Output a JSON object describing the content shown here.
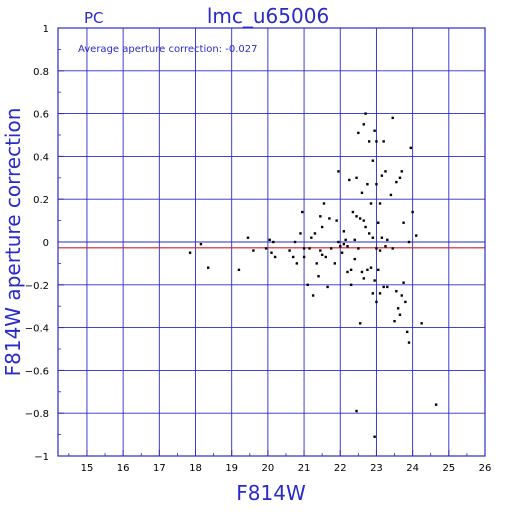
{
  "chart_data": {
    "type": "scatter",
    "corner_label": "PC",
    "title": "lmc_u65006",
    "annotation": "Average aperture correction: -0.027",
    "xlabel": "F814W",
    "ylabel": "F814W aperture correction",
    "xlim": [
      14.2,
      26
    ],
    "ylim": [
      -1,
      1
    ],
    "xticks": [
      15,
      16,
      17,
      18,
      19,
      20,
      21,
      22,
      23,
      24,
      25,
      26
    ],
    "yticks": [
      -1,
      -0.8,
      -0.6,
      -0.4,
      -0.2,
      0,
      0.2,
      0.4,
      0.6,
      0.8,
      1
    ],
    "ytick_labels": [
      "−1",
      "−0.8",
      "−0.6",
      "−0.4",
      "−0.2",
      "0",
      "0.2",
      "0.4",
      "0.6",
      "0.8",
      "1"
    ],
    "grid": true,
    "reference_lines": [
      {
        "y": 0,
        "color": "#2a2acb"
      },
      {
        "y": -0.027,
        "color": "#d42020"
      }
    ],
    "colors": {
      "axes": "#2a2acb",
      "grid": "#2a2acb",
      "average_line": "#d42020",
      "points": "#000000"
    },
    "points": [
      [
        17.85,
        -0.05
      ],
      [
        18.15,
        -0.01
      ],
      [
        18.35,
        -0.12
      ],
      [
        19.2,
        -0.13
      ],
      [
        19.45,
        0.02
      ],
      [
        19.6,
        -0.04
      ],
      [
        19.95,
        -0.03
      ],
      [
        20.05,
        0.01
      ],
      [
        20.1,
        -0.05
      ],
      [
        20.15,
        0.0
      ],
      [
        20.2,
        -0.07
      ],
      [
        20.6,
        -0.04
      ],
      [
        20.7,
        -0.07
      ],
      [
        20.75,
        0.0
      ],
      [
        20.8,
        -0.1
      ],
      [
        20.9,
        0.04
      ],
      [
        20.95,
        0.14
      ],
      [
        21.0,
        -0.03
      ],
      [
        21.0,
        -0.07
      ],
      [
        21.1,
        -0.2
      ],
      [
        21.15,
        -0.03
      ],
      [
        21.2,
        0.02
      ],
      [
        21.25,
        -0.25
      ],
      [
        21.3,
        0.04
      ],
      [
        21.35,
        -0.1
      ],
      [
        21.4,
        -0.16
      ],
      [
        21.45,
        0.12
      ],
      [
        21.45,
        -0.04
      ],
      [
        21.5,
        0.07
      ],
      [
        21.5,
        -0.06
      ],
      [
        21.55,
        0.18
      ],
      [
        21.6,
        -0.07
      ],
      [
        21.65,
        -0.21
      ],
      [
        21.7,
        0.11
      ],
      [
        21.75,
        -0.03
      ],
      [
        21.85,
        -0.1
      ],
      [
        21.9,
        0.1
      ],
      [
        21.95,
        0.33
      ],
      [
        21.95,
        0.0
      ],
      [
        22.0,
        -0.02
      ],
      [
        22.05,
        -0.05
      ],
      [
        22.1,
        0.05
      ],
      [
        22.1,
        -0.01
      ],
      [
        22.15,
        0.01
      ],
      [
        22.2,
        -0.14
      ],
      [
        22.2,
        -0.02
      ],
      [
        22.25,
        0.29
      ],
      [
        22.3,
        -0.13
      ],
      [
        22.3,
        -0.2
      ],
      [
        22.35,
        0.14
      ],
      [
        22.4,
        0.01
      ],
      [
        22.4,
        -0.08
      ],
      [
        22.45,
        0.3
      ],
      [
        22.45,
        0.12
      ],
      [
        22.5,
        0.51
      ],
      [
        22.5,
        -0.03
      ],
      [
        22.55,
        0.11
      ],
      [
        22.55,
        -0.38
      ],
      [
        22.6,
        0.23
      ],
      [
        22.6,
        -0.14
      ],
      [
        22.65,
        0.55
      ],
      [
        22.65,
        0.1
      ],
      [
        22.65,
        -0.17
      ],
      [
        22.7,
        0.6
      ],
      [
        22.7,
        0.07
      ],
      [
        22.75,
        0.27
      ],
      [
        22.75,
        -0.13
      ],
      [
        22.8,
        0.47
      ],
      [
        22.8,
        0.04
      ],
      [
        22.85,
        0.18
      ],
      [
        22.85,
        -0.12
      ],
      [
        22.9,
        0.38
      ],
      [
        22.9,
        0.02
      ],
      [
        22.9,
        -0.24
      ],
      [
        22.95,
        0.52
      ],
      [
        22.95,
        -0.18
      ],
      [
        23.0,
        0.47
      ],
      [
        23.0,
        0.27
      ],
      [
        23.0,
        -0.03
      ],
      [
        23.0,
        -0.28
      ],
      [
        23.05,
        0.09
      ],
      [
        23.05,
        -0.13
      ],
      [
        23.1,
        0.18
      ],
      [
        23.1,
        -0.04
      ],
      [
        23.1,
        -0.24
      ],
      [
        23.15,
        0.31
      ],
      [
        23.15,
        0.02
      ],
      [
        23.2,
        0.47
      ],
      [
        23.2,
        -0.21
      ],
      [
        23.25,
        0.33
      ],
      [
        23.25,
        -0.02
      ],
      [
        23.3,
        0.01
      ],
      [
        23.3,
        -0.21
      ],
      [
        23.4,
        0.22
      ],
      [
        23.45,
        0.58
      ],
      [
        23.45,
        -0.03
      ],
      [
        23.5,
        -0.37
      ],
      [
        23.55,
        0.28
      ],
      [
        23.55,
        -0.23
      ],
      [
        23.6,
        -0.31
      ],
      [
        23.65,
        0.3
      ],
      [
        23.65,
        -0.34
      ],
      [
        23.7,
        0.33
      ],
      [
        23.7,
        -0.25
      ],
      [
        23.75,
        0.09
      ],
      [
        23.75,
        -0.19
      ],
      [
        23.8,
        -0.28
      ],
      [
        23.85,
        -0.42
      ],
      [
        23.9,
        0.0
      ],
      [
        23.9,
        -0.47
      ],
      [
        23.95,
        0.44
      ],
      [
        24.0,
        0.14
      ],
      [
        24.1,
        0.03
      ],
      [
        24.25,
        -0.38
      ],
      [
        22.45,
        -0.79
      ],
      [
        22.95,
        -0.91
      ],
      [
        24.65,
        -0.76
      ]
    ]
  }
}
